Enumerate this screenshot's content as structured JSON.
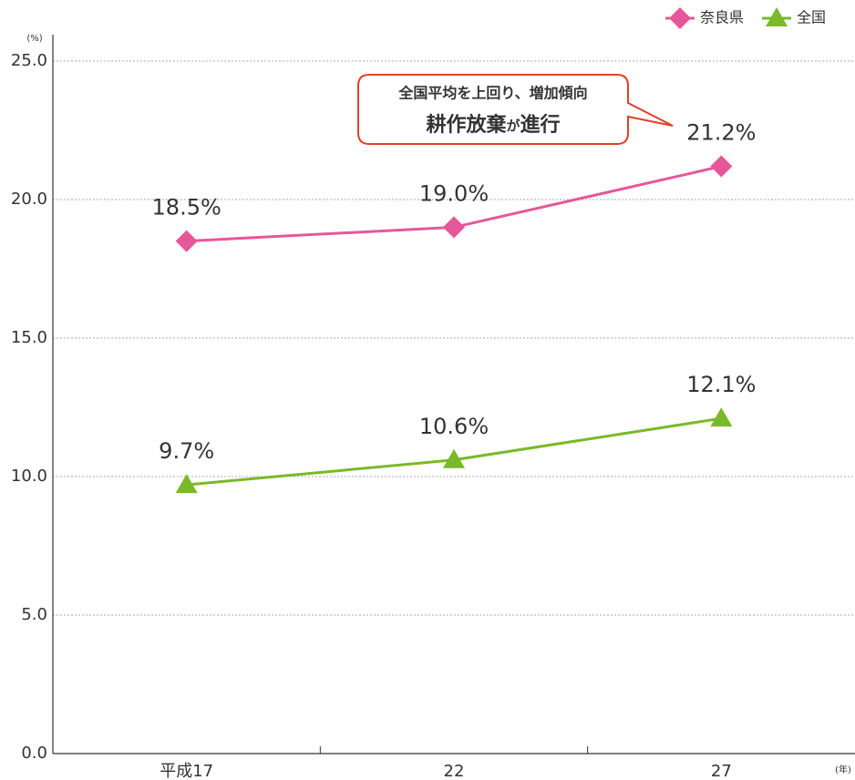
{
  "chart_data": {
    "type": "line",
    "categories": [
      "平成17",
      "22",
      "27"
    ],
    "series": [
      {
        "name": "奈良県",
        "color": "#e6579a",
        "marker": "diamond",
        "values": [
          18.5,
          19.0,
          21.2
        ],
        "value_labels": [
          "18.5%",
          "19.0%",
          "21.2%"
        ]
      },
      {
        "name": "全国",
        "color": "#7ab929",
        "marker": "triangle",
        "values": [
          9.7,
          10.6,
          12.1
        ],
        "value_labels": [
          "9.7%",
          "10.6%",
          "12.1%"
        ]
      }
    ],
    "ylim": [
      0,
      25
    ],
    "yticks": [
      {
        "value": 0,
        "label": "0.0"
      },
      {
        "value": 5,
        "label": "5.0"
      },
      {
        "value": 10,
        "label": "10.0"
      },
      {
        "value": 15,
        "label": "15.0"
      },
      {
        "value": 20,
        "label": "20.0"
      },
      {
        "value": 25,
        "label": "25.0"
      }
    ],
    "y_unit": "(%)",
    "x_unit": "(年)",
    "grid": true,
    "legend": "top-right",
    "annotation": {
      "line1": "全国平均を上回り、増加傾向",
      "line2": [
        "耕作放棄",
        "が",
        "進行"
      ]
    }
  }
}
